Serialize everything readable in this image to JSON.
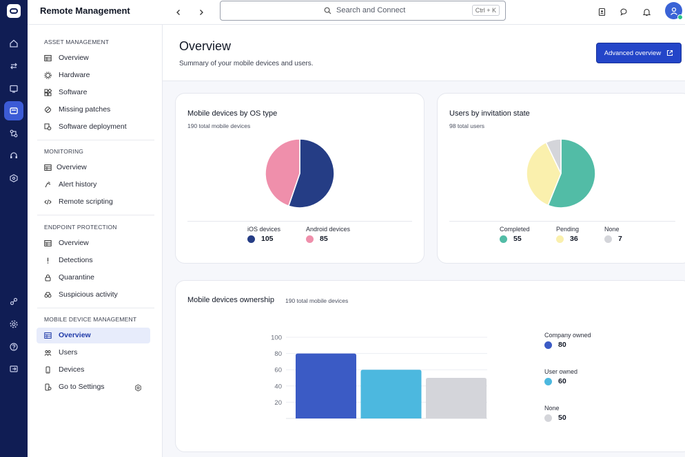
{
  "app": {
    "title": "Remote Management"
  },
  "search": {
    "placeholder": "Search and Connect",
    "shortcut": "Ctrl + K"
  },
  "sidebar": {
    "sections": [
      {
        "heading": "ASSET MANAGEMENT",
        "items": [
          {
            "label": "Overview",
            "icon": "table-icon"
          },
          {
            "label": "Hardware",
            "icon": "chip-icon"
          },
          {
            "label": "Software",
            "icon": "apps-icon"
          },
          {
            "label": "Missing patches",
            "icon": "patch-icon"
          },
          {
            "label": "Software deployment",
            "icon": "deploy-icon"
          }
        ]
      },
      {
        "heading": "MONITORING",
        "items": [
          {
            "label": "Overview",
            "icon": "table-icon"
          },
          {
            "label": "Alert history",
            "icon": "alert-icon"
          },
          {
            "label": "Remote scripting",
            "icon": "code-icon"
          }
        ]
      },
      {
        "heading": "ENDPOINT PROTECTION",
        "items": [
          {
            "label": "Overview",
            "icon": "table-icon"
          },
          {
            "label": "Detections",
            "icon": "exclamation-icon"
          },
          {
            "label": "Quarantine",
            "icon": "lock-icon"
          },
          {
            "label": "Suspicious activity",
            "icon": "binoculars-icon"
          }
        ]
      },
      {
        "heading": "MOBILE DEVICE MANAGEMENT",
        "items": [
          {
            "label": "Overview",
            "icon": "table-icon",
            "active": true
          },
          {
            "label": "Users",
            "icon": "users-icon"
          },
          {
            "label": "Devices",
            "icon": "phone-icon"
          },
          {
            "label": "Go to Settings",
            "icon": "settings-phone-icon",
            "trailing_icon": "gear-icon"
          }
        ]
      }
    ]
  },
  "page": {
    "title": "Overview",
    "subtitle": "Summary of your mobile devices and users.",
    "advanced_button": "Advanced overview"
  },
  "cards": {
    "os": {
      "title": "Mobile devices by OS type",
      "subtitle": "190 total mobile devices"
    },
    "users": {
      "title": "Users by invitation state",
      "subtitle": "98 total users"
    },
    "ownership": {
      "title": "Mobile devices ownership",
      "subtitle": "190 total mobile devices"
    }
  },
  "colors": {
    "ios": "#253d85",
    "android": "#ef8fab",
    "completed": "#52bca6",
    "pending": "#faf0ad",
    "none": "#d4d5da",
    "company": "#3b5bc5",
    "user": "#4cb8df",
    "accent": "#2345c8",
    "rail": "#101d54"
  },
  "chart_data": [
    {
      "type": "pie",
      "title": "Mobile devices by OS type",
      "subtitle": "190 total mobile devices",
      "categories": [
        "iOS devices",
        "Android devices"
      ],
      "values": [
        105,
        85
      ],
      "colors": [
        "#253d85",
        "#ef8fab"
      ]
    },
    {
      "type": "pie",
      "title": "Users by invitation state",
      "subtitle": "98 total users",
      "categories": [
        "Completed",
        "Pending",
        "None"
      ],
      "values": [
        55,
        36,
        7
      ],
      "colors": [
        "#52bca6",
        "#faf0ad",
        "#d4d5da"
      ]
    },
    {
      "type": "bar",
      "title": "Mobile devices ownership",
      "subtitle": "190 total mobile devices",
      "categories": [
        "Company owned",
        "User owned",
        "None"
      ],
      "values": [
        80,
        60,
        50
      ],
      "colors": [
        "#3b5bc5",
        "#4cb8df",
        "#d4d5da"
      ],
      "yticks": [
        20,
        40,
        60,
        80,
        100
      ],
      "ylim": [
        0,
        100
      ],
      "grid": true,
      "legend": "right"
    }
  ]
}
